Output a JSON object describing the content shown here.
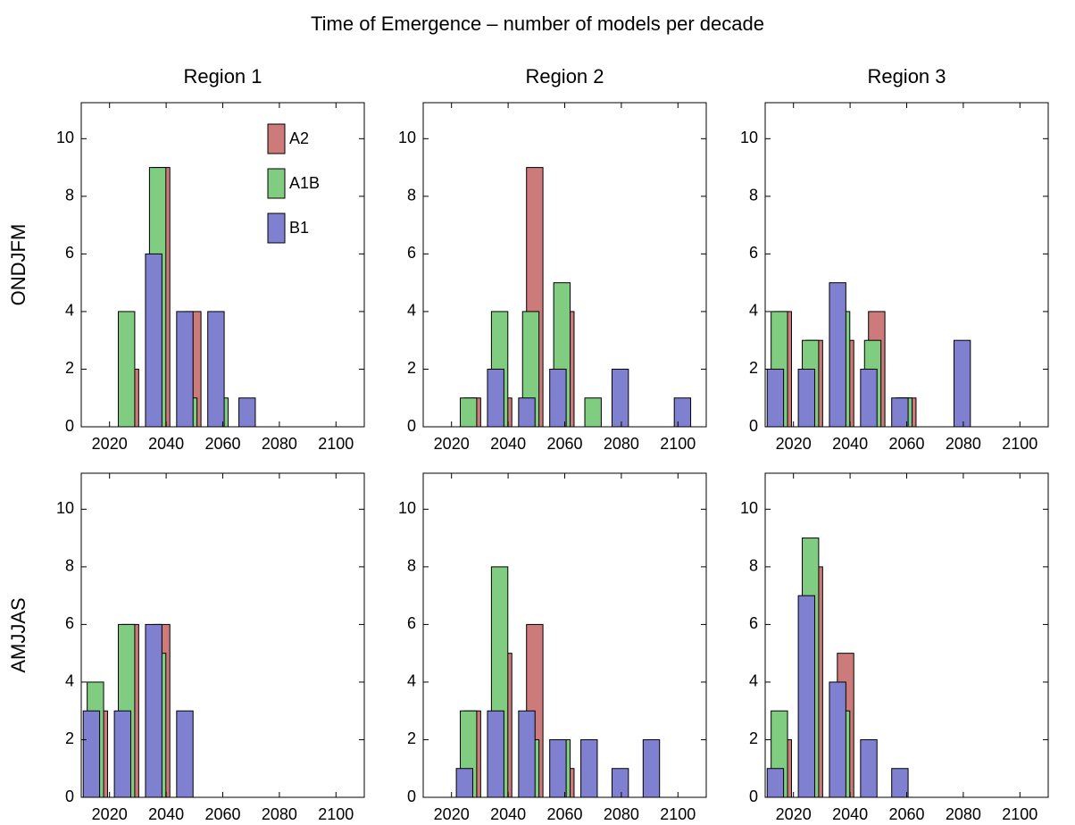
{
  "title": "Time of Emergence – number of models per decade",
  "chart_data": [
    {
      "type": "bar",
      "title": "Region 1",
      "ylabel": "ONDJFM",
      "legend": "upper right",
      "x": [
        2015,
        2026,
        2037,
        2048,
        2059,
        2070,
        2081,
        2092,
        2103
      ],
      "xlim": [
        2010,
        2110
      ],
      "xticks": [
        2020,
        2040,
        2060,
        2080,
        2100
      ],
      "ylim": [
        0,
        11.25
      ],
      "yticks": [
        0,
        2,
        4,
        6,
        8,
        10
      ],
      "series": [
        {
          "name": "A2",
          "color": "#cc7a7a",
          "values": [
            0,
            2,
            9,
            4,
            0,
            0,
            0,
            0,
            0
          ]
        },
        {
          "name": "A1B",
          "color": "#80cc80",
          "values": [
            0,
            4,
            9,
            1,
            1,
            0,
            0,
            0,
            0
          ]
        },
        {
          "name": "B1",
          "color": "#8080d0",
          "values": [
            0,
            0,
            6,
            4,
            4,
            1,
            0,
            0,
            0
          ]
        }
      ]
    },
    {
      "type": "bar",
      "title": "Region 2",
      "x": [
        2015,
        2026,
        2037,
        2048,
        2059,
        2070,
        2081,
        2092,
        2103
      ],
      "xlim": [
        2010,
        2110
      ],
      "xticks": [
        2020,
        2040,
        2060,
        2080,
        2100
      ],
      "ylim": [
        0,
        11.25
      ],
      "yticks": [
        0,
        2,
        4,
        6,
        8,
        10
      ],
      "series": [
        {
          "color": "#cc7a7a",
          "values": [
            0,
            1,
            1,
            9,
            4,
            0,
            0,
            0,
            0
          ]
        },
        {
          "color": "#80cc80",
          "values": [
            0,
            1,
            4,
            4,
            5,
            1,
            0,
            0,
            0
          ]
        },
        {
          "color": "#8080d0",
          "values": [
            0,
            0,
            2,
            1,
            2,
            0,
            2,
            0,
            1
          ]
        }
      ]
    },
    {
      "type": "bar",
      "title": "Region 3",
      "x": [
        2015,
        2026,
        2037,
        2048,
        2059,
        2070,
        2081,
        2092,
        2103
      ],
      "xlim": [
        2010,
        2110
      ],
      "xticks": [
        2020,
        2040,
        2060,
        2080,
        2100
      ],
      "ylim": [
        0,
        11.25
      ],
      "yticks": [
        0,
        2,
        4,
        6,
        8,
        10
      ],
      "series": [
        {
          "color": "#cc7a7a",
          "values": [
            4,
            3,
            3,
            4,
            1,
            0,
            0,
            0,
            0
          ]
        },
        {
          "color": "#80cc80",
          "values": [
            4,
            3,
            4,
            3,
            1,
            0,
            0,
            0,
            0
          ]
        },
        {
          "color": "#8080d0",
          "values": [
            2,
            2,
            5,
            2,
            1,
            0,
            3,
            0,
            0
          ]
        }
      ]
    },
    {
      "type": "bar",
      "ylabel": "AMJJAS",
      "x": [
        2015,
        2026,
        2037,
        2048,
        2059,
        2070,
        2081,
        2092,
        2103
      ],
      "xlim": [
        2010,
        2110
      ],
      "xticks": [
        2020,
        2040,
        2060,
        2080,
        2100
      ],
      "ylim": [
        0,
        11.25
      ],
      "yticks": [
        0,
        2,
        4,
        6,
        8,
        10
      ],
      "series": [
        {
          "color": "#cc7a7a",
          "values": [
            3,
            6,
            6,
            0,
            0,
            0,
            0,
            0,
            0
          ]
        },
        {
          "color": "#80cc80",
          "values": [
            4,
            6,
            5,
            0,
            0,
            0,
            0,
            0,
            0
          ]
        },
        {
          "color": "#8080d0",
          "values": [
            3,
            3,
            6,
            3,
            0,
            0,
            0,
            0,
            0
          ]
        }
      ]
    },
    {
      "type": "bar",
      "x": [
        2015,
        2026,
        2037,
        2048,
        2059,
        2070,
        2081,
        2092,
        2103
      ],
      "xlim": [
        2010,
        2110
      ],
      "xticks": [
        2020,
        2040,
        2060,
        2080,
        2100
      ],
      "ylim": [
        0,
        11.25
      ],
      "yticks": [
        0,
        2,
        4,
        6,
        8,
        10
      ],
      "series": [
        {
          "color": "#cc7a7a",
          "values": [
            0,
            3,
            5,
            6,
            1,
            0,
            0,
            0,
            0
          ]
        },
        {
          "color": "#80cc80",
          "values": [
            0,
            3,
            8,
            2,
            2,
            0,
            0,
            0,
            0
          ]
        },
        {
          "color": "#8080d0",
          "values": [
            0,
            1,
            3,
            3,
            2,
            2,
            1,
            2,
            0
          ]
        }
      ]
    },
    {
      "type": "bar",
      "x": [
        2015,
        2026,
        2037,
        2048,
        2059,
        2070,
        2081,
        2092,
        2103
      ],
      "xlim": [
        2010,
        2110
      ],
      "xticks": [
        2020,
        2040,
        2060,
        2080,
        2100
      ],
      "ylim": [
        0,
        11.25
      ],
      "yticks": [
        0,
        2,
        4,
        6,
        8,
        10
      ],
      "series": [
        {
          "color": "#cc7a7a",
          "values": [
            2,
            8,
            5,
            0,
            0,
            0,
            0,
            0,
            0
          ]
        },
        {
          "color": "#80cc80",
          "values": [
            3,
            9,
            3,
            0,
            0,
            0,
            0,
            0,
            0
          ]
        },
        {
          "color": "#8080d0",
          "values": [
            1,
            7,
            4,
            2,
            1,
            0,
            0,
            0,
            0
          ]
        }
      ]
    }
  ]
}
